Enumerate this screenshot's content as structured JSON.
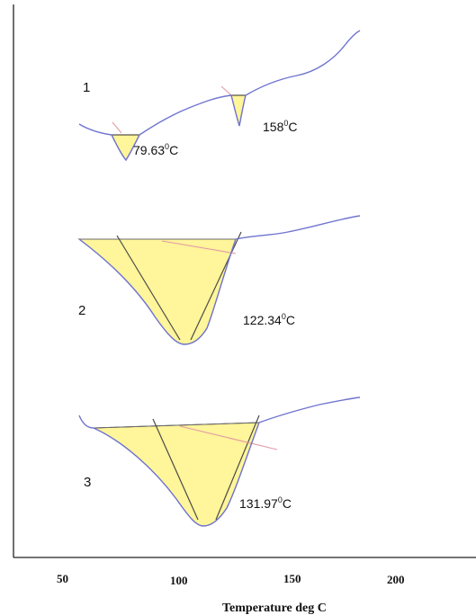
{
  "chart_data": {
    "type": "line",
    "title": "",
    "xlabel": "Temperature deg C",
    "ylabel": "",
    "x_ticks": [
      50,
      100,
      150,
      200
    ],
    "xlim": [
      40,
      210
    ],
    "series": [
      {
        "name": "1",
        "peaks": [
          {
            "temperature": 79.63,
            "label": "79.63",
            "unit": "C",
            "superscript": "0"
          },
          {
            "temperature": 158,
            "label": "158",
            "unit": "C",
            "superscript": "0"
          }
        ]
      },
      {
        "name": "2",
        "peaks": [
          {
            "temperature": 122.34,
            "label": "122.34",
            "unit": "C",
            "superscript": "0"
          }
        ]
      },
      {
        "name": "3",
        "peaks": [
          {
            "temperature": 131.97,
            "label": "131.97",
            "unit": "C",
            "superscript": "0"
          }
        ]
      }
    ],
    "colors": {
      "curve": "#6f74cf",
      "peak_fill": "#fff59a",
      "tangent_pink": "#e39aa6"
    }
  }
}
